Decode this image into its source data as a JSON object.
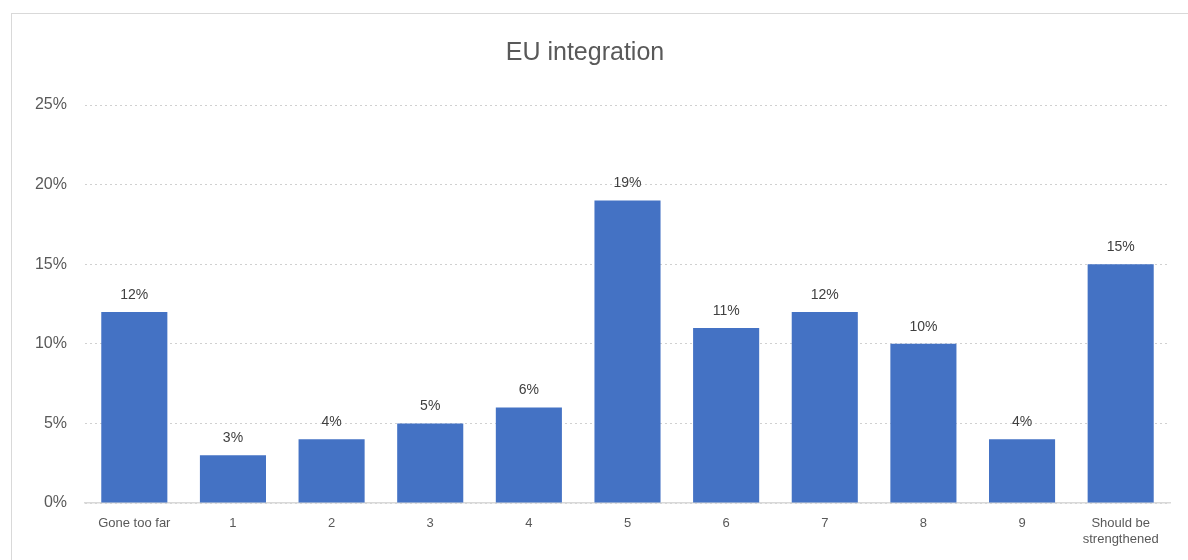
{
  "chart_data": {
    "type": "bar",
    "title": "EU integration",
    "categories": [
      "Gone too far",
      "1",
      "2",
      "3",
      "4",
      "5",
      "6",
      "7",
      "8",
      "9",
      "Should be strengthened"
    ],
    "values": [
      12,
      3,
      4,
      5,
      6,
      19,
      11,
      12,
      10,
      4,
      15
    ],
    "color": "#4472c4",
    "ylim": [
      0,
      25
    ],
    "yticks": [
      {
        "value": 0,
        "label": "0%"
      },
      {
        "value": 5,
        "label": "5%"
      },
      {
        "value": 10,
        "label": "10%"
      },
      {
        "value": 15,
        "label": "15%"
      },
      {
        "value": 20,
        "label": "20%"
      },
      {
        "value": 25,
        "label": "25%"
      }
    ],
    "grid": "y",
    "value_labels": [
      "12%",
      "3%",
      "4%",
      "5%",
      "6%",
      "19%",
      "11%",
      "12%",
      "10%",
      "4%",
      "15%"
    ]
  }
}
